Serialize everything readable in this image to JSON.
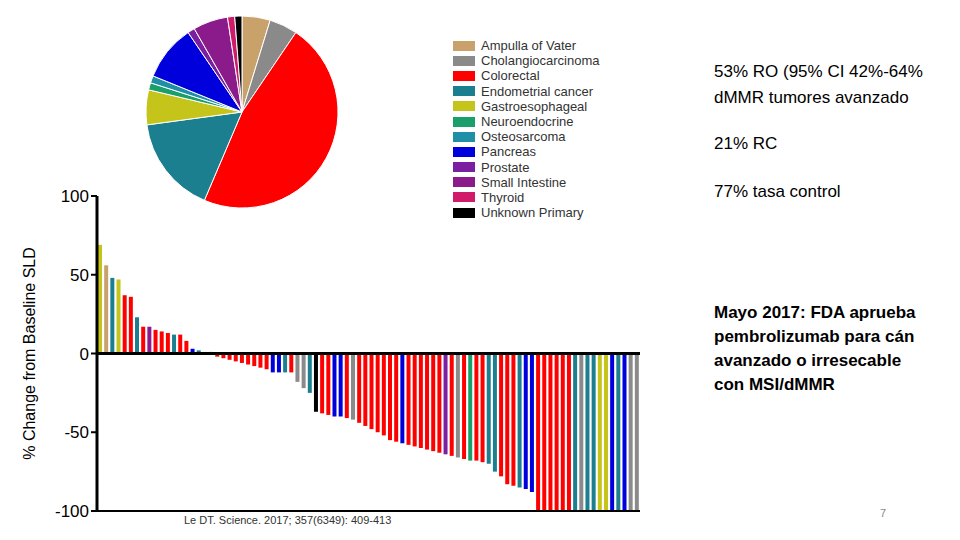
{
  "chart_data": [
    {
      "type": "pie",
      "categories": [
        "Ampulla of Vater",
        "Cholangiocarcinoma",
        "Colorectal",
        "Endometrial cancer",
        "Gastroesophageal",
        "Neuroendocrine",
        "Osteosarcoma",
        "Pancreas",
        "Prostate",
        "Small Intestine",
        "Thyroid",
        "Unknown Primary"
      ],
      "values": [
        4.7,
        4.7,
        46.5,
        16.3,
        5.8,
        1.2,
        1.2,
        9.3,
        1.2,
        5.8,
        1.2,
        1.2
      ],
      "colors": [
        "#c9a26b",
        "#8a8a8a",
        "#ff0000",
        "#1b7f8f",
        "#c4c41a",
        "#1a9f6a",
        "#1f8fa8",
        "#0000dd",
        "#7a1fa0",
        "#8b1a8b",
        "#d01a6a",
        "#000000"
      ],
      "legend": "right"
    },
    {
      "type": "bar",
      "y_label": "% Change from Baseline SLD",
      "categories": [
        null,
        null,
        null,
        null,
        null,
        null,
        null,
        null,
        null,
        null,
        null,
        null,
        null,
        null,
        null,
        null,
        null,
        null,
        null,
        null,
        null,
        null,
        null,
        null,
        null,
        null,
        null,
        null,
        null,
        null,
        null,
        null,
        null,
        null,
        null,
        null,
        null,
        null,
        null,
        null,
        null,
        null,
        null,
        null,
        null,
        null,
        null,
        null,
        null,
        null,
        null,
        null,
        null,
        null,
        null,
        null,
        null,
        null,
        null,
        null,
        null,
        null,
        null,
        null,
        null,
        null,
        null,
        null,
        null,
        null,
        null,
        null,
        null,
        null,
        null,
        null,
        null,
        null,
        null,
        null,
        null,
        null,
        null,
        null,
        null,
        null,
        null,
        null
      ],
      "values": [
        69,
        56,
        48,
        47,
        37,
        36,
        23,
        17,
        17,
        15,
        14,
        13,
        12,
        12,
        8,
        3,
        2,
        1,
        1,
        -2,
        -3,
        -4,
        -5,
        -6,
        -7,
        -8,
        -9,
        -10,
        -12,
        -12,
        -12,
        -12,
        -18,
        -22,
        -25,
        -37,
        -38,
        -39,
        -40,
        -40,
        -41,
        -42,
        -44,
        -46,
        -48,
        -50,
        -52,
        -55,
        -56,
        -57,
        -58,
        -59,
        -60,
        -61,
        -62,
        -63,
        -64,
        -65,
        -66,
        -67,
        -68,
        -68,
        -69,
        -70,
        -75,
        -78,
        -83,
        -84,
        -85,
        -86,
        -88,
        -100,
        -100,
        -100,
        -100,
        -100,
        -100,
        -100,
        -100,
        -100,
        -100,
        -100,
        -100,
        -100,
        -100,
        -100,
        -100,
        -100
      ],
      "colors": [
        "#c4c41a",
        "#c9a26b",
        "#1b7f8f",
        "#c4c41a",
        "#ff0000",
        "#ff0000",
        "#1b7f8f",
        "#ff0000",
        "#8b1a8b",
        "#ff0000",
        "#ff0000",
        "#ff0000",
        "#1b7f8f",
        "#ff0000",
        "#ff0000",
        "#0000dd",
        "#1b7f8f",
        "#8a8a8a",
        "#ff0000",
        "#ff0000",
        "#ff0000",
        "#ff0000",
        "#ff0000",
        "#ff0000",
        "#ff0000",
        "#ff0000",
        "#ff0000",
        "#ff0000",
        "#0000dd",
        "#0000dd",
        "#1b7f8f",
        "#ff0000",
        "#8a8a8a",
        "#8a8a8a",
        "#1b7f8f",
        "#000000",
        "#ff0000",
        "#ff0000",
        "#0000dd",
        "#0000dd",
        "#ff0000",
        "#8a8a8a",
        "#ff0000",
        "#ff0000",
        "#ff0000",
        "#ff0000",
        "#ff0000",
        "#ff0000",
        "#ff0000",
        "#0000dd",
        "#ff0000",
        "#ff0000",
        "#ff0000",
        "#ff0000",
        "#ff0000",
        "#ff0000",
        "#7a1fa0",
        "#ff0000",
        "#8a8a8a",
        "#ff0000",
        "#1a9f6a",
        "#ff0000",
        "#ff0000",
        "#1b7f8f",
        "#1b7f8f",
        "#ff0000",
        "#ff0000",
        "#ff0000",
        "#1b7f8f",
        "#0000dd",
        "#0000dd",
        "#ff0000",
        "#ff0000",
        "#ff0000",
        "#ff0000",
        "#ff0000",
        "#ff0000",
        "#1b7f8f",
        "#8a8a8a",
        "#1b7f8f",
        "#1b7f8f",
        "#c4c41a",
        "#c4c41a",
        "#0000dd",
        "#1b7f8f",
        "#0000dd",
        "#8a8a8a",
        "#8a8a8a"
      ],
      "ylim": [
        -100,
        100
      ],
      "yticks": [
        -100,
        -50,
        0,
        50,
        100
      ],
      "tick_labels": "y"
    }
  ],
  "slide": {
    "results": [
      "53% RO (95% CI 42%-64%",
      "dMMR tumores avanzado",
      "21% RC",
      "77% tasa control"
    ],
    "approval": [
      "Mayo 2017: FDA aprueba",
      "pembrolizumab para cán",
      "avanzado o irresecable",
      "con MSI/dMMR"
    ],
    "citation": "Le DT. Science. 2017; 357(6349): 409-413",
    "page": "7"
  }
}
